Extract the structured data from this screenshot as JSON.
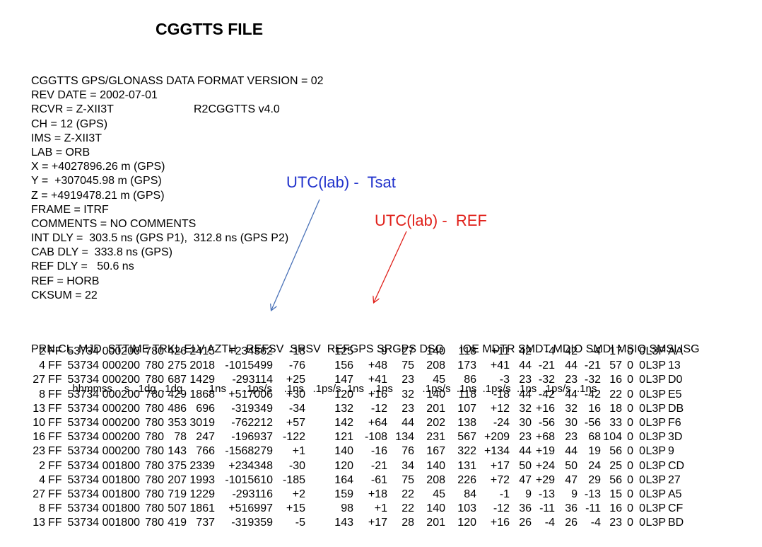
{
  "title": "CGGTTS FILE",
  "header_lines": [
    "CGGTTS GPS/GLONASS DATA FORMAT VERSION = 02",
    "REV DATE = 2002-07-01",
    "RCVR = Z-XII3T",
    "CH = 12 (GPS)",
    "IMS = Z-XII3T",
    "LAB = ORB",
    "X = +4027896.26 m (GPS)",
    "Y =  +307045.98 m (GPS)",
    "Z = +4919478.21 m (GPS)",
    "FRAME = ITRF",
    "COMMENTS = NO COMMENTS",
    "INT DLY =  303.5 ns (GPS P1),  312.8 ns (GPS P2)",
    "CAB DLY =  333.8 ns (GPS)",
    "REF DLY =   50.6 ns",
    "REF = HORB",
    "CKSUM = 22"
  ],
  "rcvr_extra": "R2CGGTTS v4.0",
  "annotations": {
    "blue": "UTC(lab) -  Tsat",
    "red": "UTC(lab) -  REF"
  },
  "column_header": "PRN CL  MJD  STTIME TRKL ELV AZTH   REFSV  SRSV  REFGPS SRGPS DSG     IOE MDTR SMDT MDIO SMDI MSIO SMSI ISG",
  "column_units": "              hhmmss    s  .1dg  .1dg        .1ns      .1ps/s    .1ns   .1ps/s .1ns   .1ns          .1ps/s  .1ns  .1ps/s  .1ns  .1ps/s  .1ns",
  "rows": [
    [
      "2",
      "FF",
      "53734",
      "000200",
      "780",
      "426",
      "2415",
      "+234362",
      "-18",
      "125",
      "-9",
      "27",
      "140",
      "118",
      "+11",
      "42",
      "-4",
      "42",
      "-4",
      "17",
      "0",
      "0",
      "L3P",
      "AA"
    ],
    [
      "4",
      "FF",
      "53734",
      "000200",
      "780",
      "275",
      "2018",
      "-1015499",
      "-76",
      "156",
      "+48",
      "75",
      "208",
      "173",
      "+41",
      "44",
      "-21",
      "44",
      "-21",
      "57",
      "0",
      "0",
      "L3P",
      "13"
    ],
    [
      "27",
      "FF",
      "53734",
      "000200",
      "780",
      "687",
      "1429",
      "-293114",
      "+25",
      "147",
      "+41",
      "23",
      "45",
      "86",
      "-3",
      "23",
      "-32",
      "23",
      "-32",
      "16",
      "0",
      "0",
      "L3P",
      "D0"
    ],
    [
      "8",
      "FF",
      "53734",
      "000200",
      "780",
      "429",
      "1868",
      "+517006",
      "+30",
      "120",
      "+16",
      "32",
      "140",
      "118",
      "-18",
      "44",
      "-42",
      "44",
      "-42",
      "22",
      "0",
      "0",
      "L3P",
      "E5"
    ],
    [
      "13",
      "FF",
      "53734",
      "000200",
      "780",
      "486",
      "696",
      "-319349",
      "-34",
      "132",
      "-12",
      "23",
      "201",
      "107",
      "+12",
      "32",
      "+16",
      "32",
      "16",
      "18",
      "0",
      "0",
      "L3P",
      "DB"
    ],
    [
      "10",
      "FF",
      "53734",
      "000200",
      "780",
      "353",
      "3019",
      "-762212",
      "+57",
      "142",
      "+64",
      "44",
      "202",
      "138",
      "-24",
      "30",
      "-56",
      "30",
      "-56",
      "33",
      "0",
      "0",
      "L3P",
      "F6"
    ],
    [
      "16",
      "FF",
      "53734",
      "000200",
      "780",
      "78",
      "247",
      "-196937",
      "-122",
      "121",
      "-108",
      "134",
      "231",
      "567",
      "+209",
      "23",
      "+68",
      "23",
      "68",
      "104",
      "0",
      "0",
      "L3P",
      "3D"
    ],
    [
      "23",
      "FF",
      "53734",
      "000200",
      "780",
      "143",
      "766",
      "-1568279",
      "+1",
      "140",
      "-16",
      "76",
      "167",
      "322",
      "+134",
      "44",
      "+19",
      "44",
      "19",
      "56",
      "0",
      "0",
      "L3P",
      "9"
    ],
    [
      "2",
      "FF",
      "53734",
      "001800",
      "780",
      "375",
      "2339",
      "+234348",
      "-30",
      "120",
      "-21",
      "34",
      "140",
      "131",
      "+17",
      "50",
      "+24",
      "50",
      "24",
      "25",
      "0",
      "0",
      "L3P",
      "CD"
    ],
    [
      "4",
      "FF",
      "53734",
      "001800",
      "780",
      "207",
      "1993",
      "-1015610",
      "-185",
      "164",
      "-61",
      "75",
      "208",
      "226",
      "+72",
      "47",
      "+29",
      "47",
      "29",
      "56",
      "0",
      "0",
      "L3P",
      "27"
    ],
    [
      "27",
      "FF",
      "53734",
      "001800",
      "780",
      "719",
      "1229",
      "-293116",
      "+2",
      "159",
      "+18",
      "22",
      "45",
      "84",
      "-1",
      "9",
      "-13",
      "9",
      "-13",
      "15",
      "0",
      "0",
      "L3P",
      "A5"
    ],
    [
      "8",
      "FF",
      "53734",
      "001800",
      "780",
      "507",
      "1861",
      "+516997",
      "+15",
      "98",
      "+1",
      "22",
      "140",
      "103",
      "-12",
      "36",
      "-11",
      "36",
      "-11",
      "16",
      "0",
      "0",
      "L3P",
      "CF"
    ],
    [
      "13",
      "FF",
      "53734",
      "001800",
      "780",
      "419",
      "737",
      "-319359",
      "-5",
      "143",
      "+17",
      "28",
      "201",
      "120",
      "+16",
      "26",
      "-4",
      "26",
      "-4",
      "23",
      "0",
      "0",
      "L3P",
      "BD"
    ]
  ]
}
